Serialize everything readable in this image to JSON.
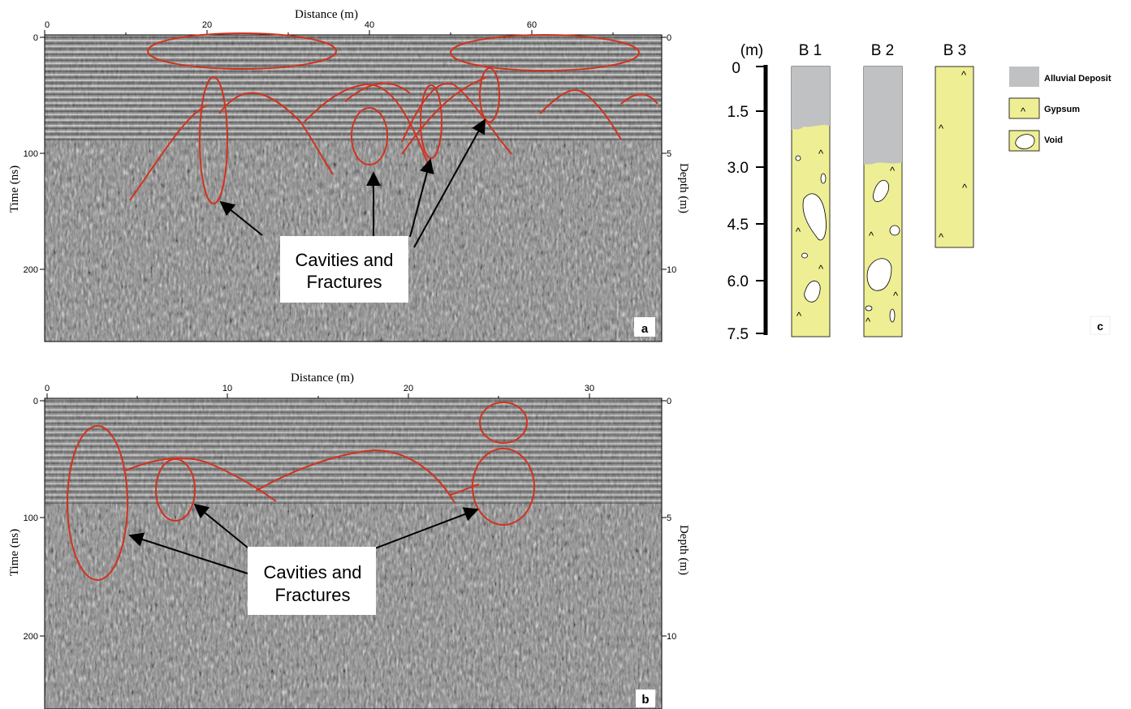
{
  "panels": {
    "a": {
      "label": "a",
      "x_axis_title": "Distance (m)",
      "y_axis_title": "Time (ns)",
      "right_axis_title": "Depth (m)",
      "x_ticks": [
        "0",
        "20",
        "40",
        "60"
      ],
      "y_ticks": [
        "0",
        "100",
        "200"
      ],
      "depth_ticks": [
        "0",
        "5",
        "10"
      ],
      "callout": [
        "Cavities and",
        "Fractures"
      ]
    },
    "b": {
      "label": "b",
      "x_axis_title": "Distance (m)",
      "y_axis_title": "Time (ns)",
      "right_axis_title": "Depth (m)",
      "x_ticks": [
        "0",
        "10",
        "20",
        "30"
      ],
      "y_ticks": [
        "0",
        "100",
        "200"
      ],
      "depth_ticks": [
        "0",
        "5",
        "10"
      ],
      "callout": [
        "Cavities and",
        "Fractures"
      ]
    },
    "c": {
      "label": "c",
      "depth_unit": "(m)",
      "depth_ticks": [
        "0",
        "1.5",
        "3.0",
        "4.5",
        "6.0",
        "7.5"
      ],
      "boreholes": [
        {
          "name": "B 1",
          "alluvial_to_m": 1.9,
          "bottom_m": 7.5
        },
        {
          "name": "B 2",
          "alluvial_to_m": 2.9,
          "bottom_m": 7.5
        },
        {
          "name": "B 3",
          "alluvial_to_m": 0,
          "bottom_m": 5.1
        }
      ],
      "legend": [
        {
          "label": "Alluvial Deposit",
          "color": "#c0c1c3"
        },
        {
          "label": "Gypsum",
          "color": "#eeee94",
          "symbol": "^"
        },
        {
          "label": "Void",
          "color": "#eeee94",
          "symbol": "void"
        }
      ]
    }
  },
  "colors": {
    "interpretation": "#d2321e",
    "gypsum": "#eeee94",
    "alluvial": "#c0c1c3"
  }
}
